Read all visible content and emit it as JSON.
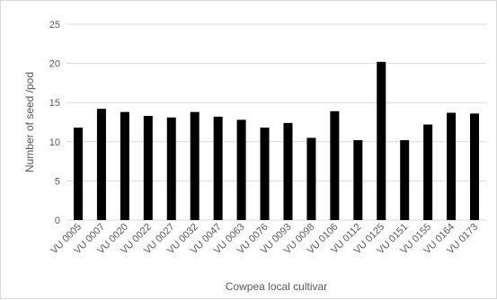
{
  "chart_data": {
    "type": "bar",
    "title": "",
    "xlabel": "Cowpea local cultivar",
    "ylabel": "Number of seed /pod",
    "ylim": [
      0,
      25
    ],
    "yticks": [
      0,
      5,
      10,
      15,
      20,
      25
    ],
    "grid": "horizontal",
    "legend": "none",
    "bar_color": "#000000",
    "grid_color": "#d9d9d9",
    "categories": [
      "VU 0005",
      "VU 0007",
      "VU 0020",
      "VU 0022",
      "VU 0027",
      "VU 0032",
      "VU 0047",
      "VU 0063",
      "VU 0076",
      "VU 0093",
      "VU 0098",
      "VU 0106",
      "VU 0112",
      "VU 0125",
      "VU 0151",
      "VU 0155",
      "VU 0164",
      "VU 0173"
    ],
    "values": [
      11.8,
      14.2,
      13.8,
      13.3,
      13.1,
      13.8,
      13.2,
      12.8,
      11.8,
      12.4,
      10.5,
      13.9,
      10.2,
      20.2,
      10.2,
      12.2,
      13.7,
      13.6
    ]
  }
}
